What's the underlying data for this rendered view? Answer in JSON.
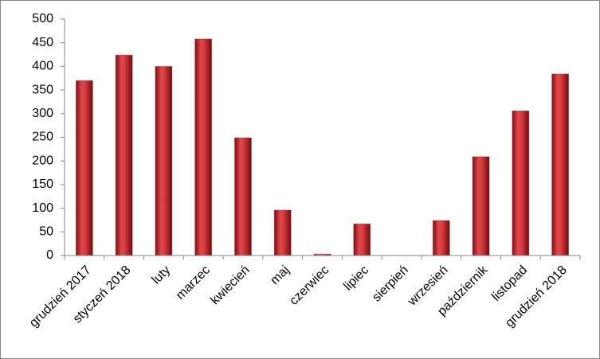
{
  "chart_data": {
    "type": "bar",
    "categories": [
      "grudzień 2017",
      "styczeń 2018",
      "luty",
      "marzec",
      "kwiecień",
      "maj",
      "czerwiec",
      "lipiec",
      "sierpień",
      "wrzesień",
      "październik",
      "listopad",
      "grudzień 2018"
    ],
    "values": [
      370,
      424,
      400,
      458,
      249,
      96,
      3,
      67,
      0,
      74,
      209,
      306,
      384
    ],
    "color": "#c0262b",
    "ylim": [
      0,
      500
    ],
    "yticks": [
      0,
      50,
      100,
      150,
      200,
      250,
      300,
      350,
      400,
      450,
      500
    ],
    "grid": false
  }
}
